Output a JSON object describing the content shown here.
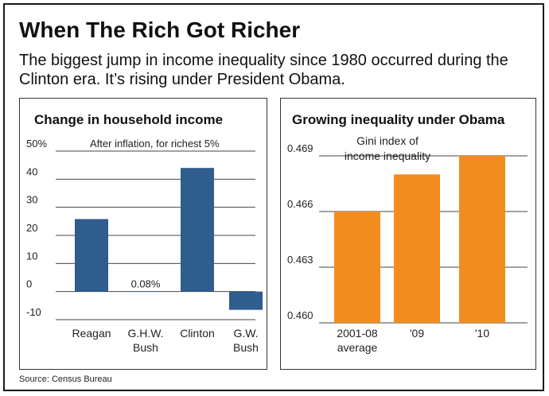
{
  "title": "When The Rich Got  Richer",
  "subtitle": "The biggest jump in income inequality since 1980 occurred during the Clinton era. It’s rising under President Obama.",
  "source": "Source: Census Bureau",
  "chart_data": [
    {
      "type": "bar",
      "title": "Change in household income",
      "annotation": "After inflation, for richest 5%",
      "categories": [
        [
          "Reagan"
        ],
        [
          "G.H.W.",
          "Bush"
        ],
        [
          "Clinton"
        ],
        [
          "G.W.",
          "Bush"
        ]
      ],
      "values": [
        25.8,
        0.08,
        44.0,
        -6.5
      ],
      "value_labels": [
        "",
        "0.08%",
        "",
        ""
      ],
      "tick_labels": [
        "50%",
        "40",
        "30",
        "20",
        "10",
        "0",
        "-10"
      ],
      "ticks": [
        50,
        40,
        30,
        20,
        10,
        0,
        -10
      ],
      "ylim": [
        -10,
        50
      ],
      "grid": true,
      "bar_color": "#2e5d8e"
    },
    {
      "type": "bar",
      "title": "Growing inequality under Obama",
      "annotation": [
        "Gini index of",
        "income inequality"
      ],
      "categories": [
        [
          "2001-08",
          "average"
        ],
        [
          "'09"
        ],
        [
          "'10"
        ]
      ],
      "values": [
        0.466,
        0.468,
        0.469
      ],
      "tick_labels": [
        "0.469",
        "0.466",
        "0.463",
        "0.460"
      ],
      "ticks": [
        0.469,
        0.466,
        0.463,
        0.46
      ],
      "ylim": [
        0.46,
        0.469
      ],
      "grid": true,
      "bar_color": "#f28c1e"
    }
  ]
}
